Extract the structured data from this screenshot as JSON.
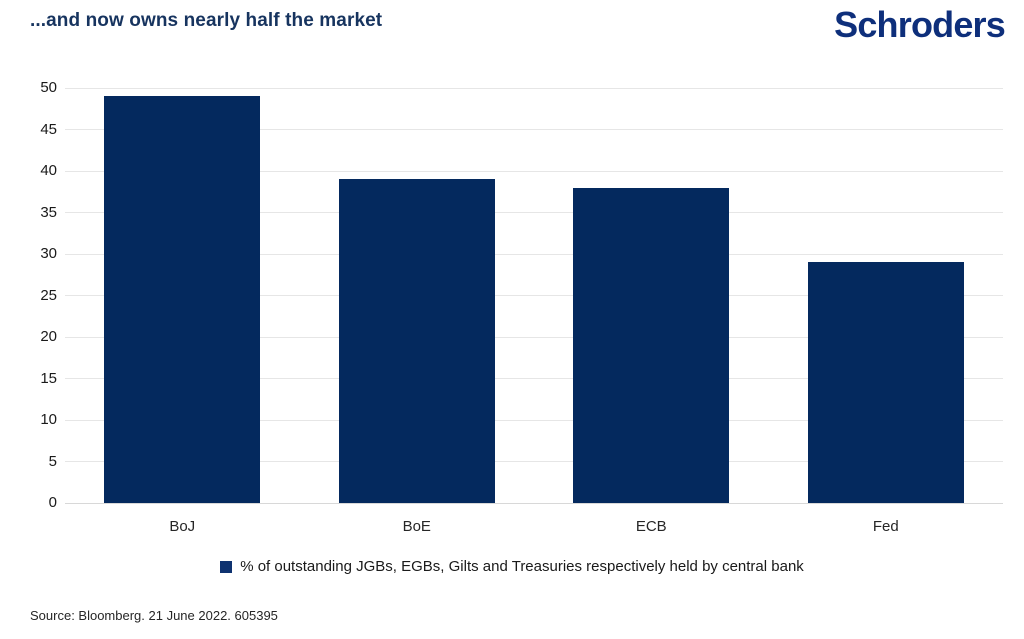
{
  "header": {
    "title": "...and now owns nearly half the market",
    "logo": "Schroders"
  },
  "chart_data": {
    "type": "bar",
    "categories": [
      "BoJ",
      "BoE",
      "ECB",
      "Fed"
    ],
    "values": [
      49,
      39,
      38,
      29
    ],
    "title": "...and now owns nearly half the market",
    "xlabel": "",
    "ylabel": "",
    "ylim": [
      0,
      50
    ],
    "ytick_step": 5,
    "grid": "horizontal",
    "legend_position": "bottom-center",
    "bar_color": "#04295e",
    "gridline_color": "#e6e6e6",
    "axis_line_color": "#d8d8d8"
  },
  "legend": {
    "label": "% of outstanding JGBs, EGBs, Gilts and Treasuries respectively held by central bank",
    "swatch_color": "#0e3270"
  },
  "footer": {
    "source": "Source: Bloomberg. 21 June 2022. 605395"
  },
  "colors": {
    "title_text": "#17345f",
    "logo_text": "#0e2f7b",
    "tick_text": "#1a1a1a"
  }
}
